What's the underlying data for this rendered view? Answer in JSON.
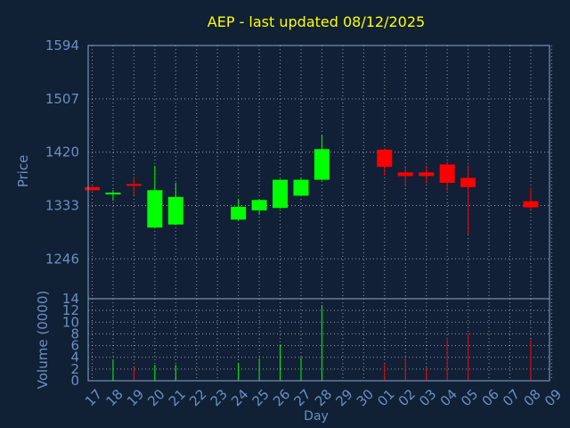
{
  "chart_data": {
    "type": "candlestick",
    "title": "AEP - last updated 08/12/2025",
    "xlabel": "Day",
    "price_ylabel": "Price",
    "volume_ylabel": "Volume (0000)",
    "days": [
      "17",
      "18",
      "19",
      "20",
      "21",
      "22",
      "23",
      "24",
      "25",
      "26",
      "27",
      "28",
      "29",
      "30",
      "01",
      "02",
      "03",
      "04",
      "05",
      "06",
      "07",
      "08",
      "09"
    ],
    "price_ticks": [
      "1594",
      "1507",
      "1420",
      "1333",
      "1246"
    ],
    "price_ylim": [
      1181,
      1594
    ],
    "volume_ticks": [
      "0",
      "2",
      "4",
      "6",
      "8",
      "10",
      "12",
      "14"
    ],
    "volume_ylim": [
      0,
      14
    ],
    "candles": [
      {
        "day": "17",
        "open": 1363,
        "close": 1358,
        "high": 1364,
        "low": 1357,
        "volume": 0.0
      },
      {
        "day": "18",
        "open": 1352,
        "close": 1354,
        "high": 1358,
        "low": 1341,
        "volume": 3.5
      },
      {
        "day": "19",
        "open": 1368,
        "close": 1366,
        "high": 1380,
        "low": 1350,
        "volume": 2.3
      },
      {
        "day": "20",
        "open": 1297,
        "close": 1358,
        "high": 1398,
        "low": 1296,
        "volume": 2.7
      },
      {
        "day": "21",
        "open": 1302,
        "close": 1347,
        "high": 1370,
        "low": 1301,
        "volume": 2.7
      },
      {
        "day": "24",
        "open": 1310,
        "close": 1331,
        "high": 1343,
        "low": 1309,
        "volume": 3.0
      },
      {
        "day": "25",
        "open": 1325,
        "close": 1342,
        "high": 1343,
        "low": 1318,
        "volume": 3.8
      },
      {
        "day": "26",
        "open": 1329,
        "close": 1375,
        "high": 1376,
        "low": 1328,
        "volume": 6.2
      },
      {
        "day": "27",
        "open": 1349,
        "close": 1375,
        "high": 1377,
        "low": 1348,
        "volume": 4.0
      },
      {
        "day": "28",
        "open": 1375,
        "close": 1425,
        "high": 1448,
        "low": 1374,
        "volume": 12.9
      },
      {
        "day": "01",
        "open": 1424,
        "close": 1396,
        "high": 1426,
        "low": 1382,
        "volume": 2.8
      },
      {
        "day": "02",
        "open": 1387,
        "close": 1381,
        "high": 1397,
        "low": 1364,
        "volume": 4.0
      },
      {
        "day": "03",
        "open": 1387,
        "close": 1381,
        "high": 1398,
        "low": 1369,
        "volume": 2.2
      },
      {
        "day": "04",
        "open": 1400,
        "close": 1370,
        "high": 1405,
        "low": 1357,
        "volume": 7.3
      },
      {
        "day": "05",
        "open": 1378,
        "close": 1363,
        "high": 1398,
        "low": 1286,
        "volume": 8.1
      },
      {
        "day": "08",
        "open": 1340,
        "close": 1330,
        "high": 1362,
        "low": 1326,
        "volume": 7.1
      }
    ],
    "colors": {
      "background": "#102035",
      "plot_background": "#112036",
      "up": "#00ff00",
      "down": "#ff0000",
      "title": "#ffff00",
      "axis_text": "#6c8fc0",
      "grid": "#ffffff",
      "frame": "#8aa8cc"
    },
    "grid": true
  }
}
